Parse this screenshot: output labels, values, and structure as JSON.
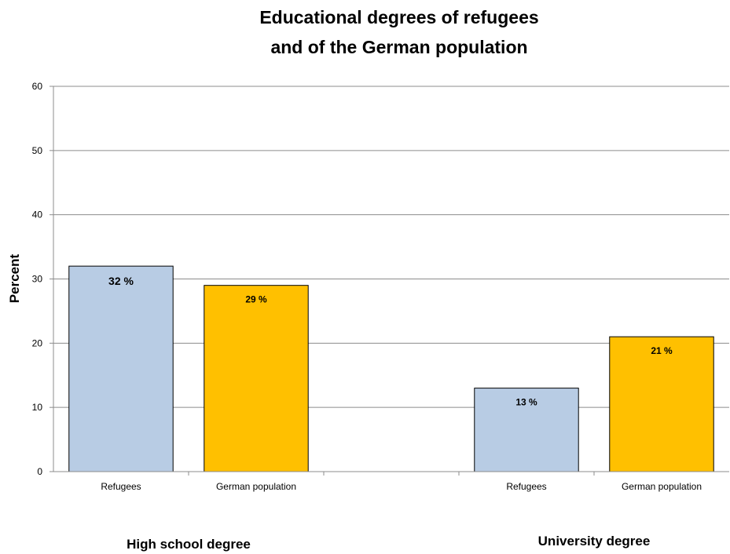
{
  "chart_data": {
    "type": "bar",
    "title": [
      "Educational degrees of refugees",
      "and of the German population"
    ],
    "ylabel": "Percent",
    "ylim": [
      0,
      60
    ],
    "yticks": [
      0,
      10,
      20,
      30,
      40,
      50,
      60
    ],
    "grid": true,
    "groups": [
      {
        "label": "High school degree",
        "categories": [
          "Refugees",
          "German population"
        ],
        "values": [
          32,
          29
        ],
        "data_labels": [
          "32 %",
          "29 %"
        ]
      },
      {
        "label": "University degree",
        "categories": [
          "Refugees",
          "German population"
        ],
        "values": [
          13,
          21
        ],
        "data_labels": [
          "13 %",
          "21 %"
        ]
      }
    ],
    "colors": {
      "Refugees": "#b8cce4",
      "German population": "#ffc000"
    }
  }
}
